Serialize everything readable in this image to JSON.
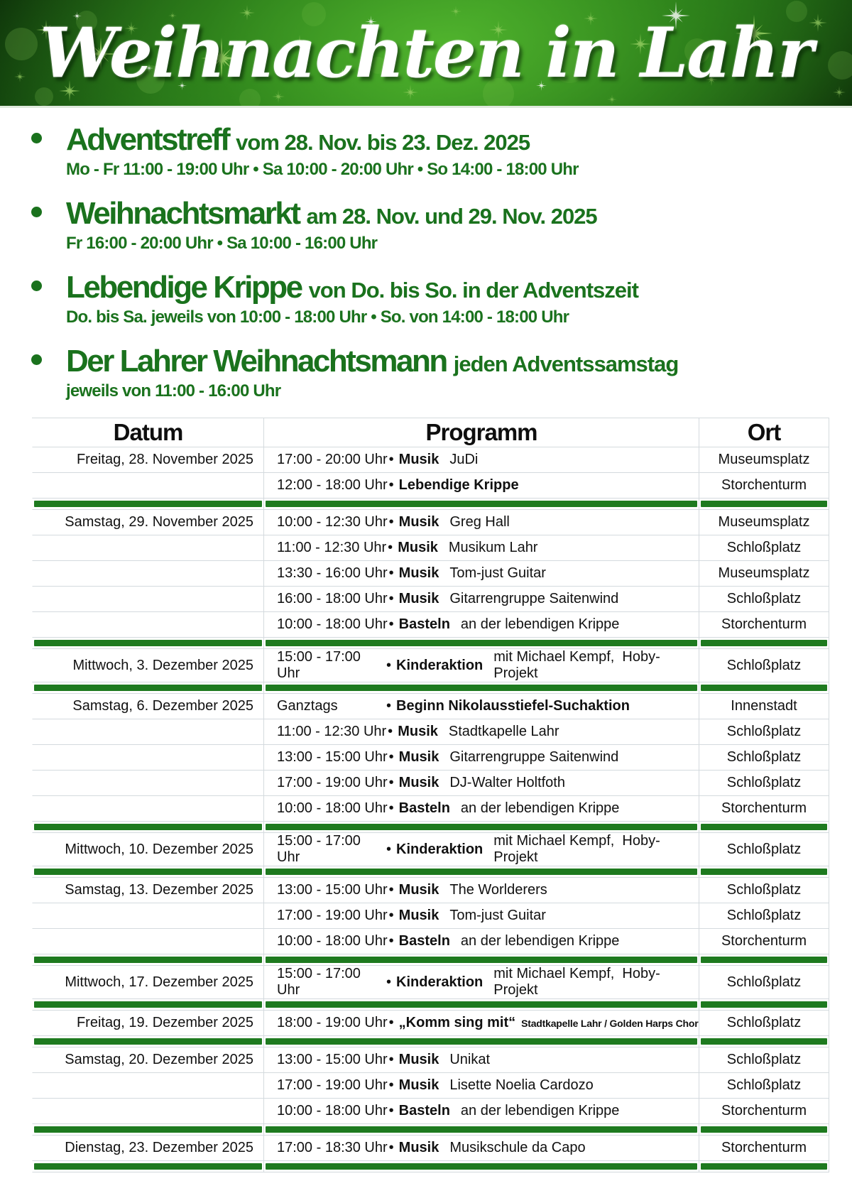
{
  "banner": {
    "title": "Weihnachten in Lahr"
  },
  "colors": {
    "heading_green": "#1a721d",
    "bar_green": "#1e7a1f",
    "line_gray": "#d4dade",
    "banner_center_green": "#3e9e28",
    "banner_edge_green": "#0a2a07",
    "sparkle_green": "#9fd468",
    "sparkle_white": "#ffffff"
  },
  "decorations": {
    "sparkle_icon_glyph": "burst-star"
  },
  "bullets": [
    {
      "title": "Adventstreff",
      "subtitle": "vom 28. Nov. bis 23. Dez. 2025",
      "times": "Mo - Fr 11:00 - 19:00 Uhr • Sa 10:00 - 20:00 Uhr • So 14:00 - 18:00 Uhr"
    },
    {
      "title": "Weihnachtsmarkt",
      "subtitle": "am 28. Nov. und 29. Nov. 2025",
      "times": "Fr 16:00 - 20:00 Uhr • Sa 10:00 - 16:00 Uhr"
    },
    {
      "title": "Lebendige Krippe",
      "subtitle": "von Do. bis So. in der Adventszeit",
      "times": "Do. bis Sa. jeweils von 10:00 - 18:00 Uhr • So. von 14:00 - 18:00 Uhr"
    },
    {
      "title": "Der Lahrer Weihnachtsmann",
      "subtitle": "jeden Adventssamstag",
      "times": "jeweils von 11:00 - 16:00 Uhr"
    }
  ],
  "table": {
    "headers": [
      "Datum",
      "Programm",
      "Ort"
    ],
    "separator": "•",
    "groups": [
      {
        "date": "Freitag, 28. November 2025",
        "rows": [
          {
            "time": "17:00 - 20:00 Uhr",
            "label": "Musik",
            "detail": "JuDi",
            "ort": "Museumsplatz"
          },
          {
            "time": "12:00 - 18:00 Uhr",
            "label": "Lebendige Krippe",
            "detail": "",
            "ort": "Storchenturm"
          }
        ]
      },
      {
        "date": "Samstag, 29. November 2025",
        "rows": [
          {
            "time": "10:00 - 12:30 Uhr",
            "label": "Musik",
            "detail": "Greg Hall",
            "ort": "Museumsplatz"
          },
          {
            "time": "11:00 - 12:30 Uhr",
            "label": "Musik",
            "detail": "Musikum Lahr",
            "ort": "Schloßplatz"
          },
          {
            "time": "13:30 - 16:00 Uhr",
            "label": "Musik",
            "detail": "Tom-just Guitar",
            "ort": "Museumsplatz"
          },
          {
            "time": "16:00 - 18:00 Uhr",
            "label": "Musik",
            "detail": "Gitarrengruppe Saitenwind",
            "ort": "Schloßplatz"
          },
          {
            "time": "10:00 - 18:00 Uhr",
            "label": "Basteln",
            "detail": "an der lebendigen Krippe",
            "ort": "Storchenturm"
          }
        ]
      },
      {
        "date": "Mittwoch, 3. Dezember 2025",
        "rows": [
          {
            "time": "15:00 - 17:00 Uhr",
            "label": "Kinderaktion",
            "detail": "mit Michael Kempf,  Hoby-Projekt",
            "ort": "Schloßplatz"
          }
        ]
      },
      {
        "date": "Samstag, 6. Dezember 2025",
        "rows": [
          {
            "time": "Ganztags",
            "label": "Beginn Nikolausstiefel-Suchaktion",
            "detail": "",
            "ort": "Innenstadt"
          },
          {
            "time": "11:00 - 12:30 Uhr",
            "label": "Musik",
            "detail": "Stadtkapelle Lahr",
            "ort": "Schloßplatz"
          },
          {
            "time": "13:00 - 15:00 Uhr",
            "label": "Musik",
            "detail": "Gitarrengruppe Saitenwind",
            "ort": "Schloßplatz"
          },
          {
            "time": "17:00 - 19:00 Uhr",
            "label": "Musik",
            "detail": "DJ-Walter Holtfoth",
            "ort": "Schloßplatz"
          },
          {
            "time": "10:00 - 18:00 Uhr",
            "label": "Basteln",
            "detail": "an der lebendigen Krippe",
            "ort": "Storchenturm"
          }
        ]
      },
      {
        "date": "Mittwoch, 10. Dezember 2025",
        "rows": [
          {
            "time": "15:00 - 17:00 Uhr",
            "label": "Kinderaktion",
            "detail": "mit Michael Kempf,  Hoby-Projekt",
            "ort": "Schloßplatz"
          }
        ]
      },
      {
        "date": "Samstag, 13. Dezember 2025",
        "rows": [
          {
            "time": "13:00 - 15:00 Uhr",
            "label": "Musik",
            "detail": "The Worlderers",
            "ort": "Schloßplatz"
          },
          {
            "time": "17:00 - 19:00 Uhr",
            "label": "Musik",
            "detail": "Tom-just Guitar",
            "ort": "Schloßplatz"
          },
          {
            "time": "10:00 - 18:00 Uhr",
            "label": "Basteln",
            "detail": "an der lebendigen Krippe",
            "ort": "Storchenturm"
          }
        ]
      },
      {
        "date": "Mittwoch, 17. Dezember 2025",
        "rows": [
          {
            "time": "15:00 - 17:00 Uhr",
            "label": "Kinderaktion",
            "detail": "mit Michael Kempf,  Hoby-Projekt",
            "ort": "Schloßplatz"
          }
        ]
      },
      {
        "date": "Freitag, 19. Dezember 2025",
        "rows": [
          {
            "time": "18:00 - 19:00 Uhr",
            "label": "„Komm sing mit“",
            "detail": "Stadtkapelle Lahr / Golden Harps Chor",
            "detail_small": true,
            "ort": "Schloßplatz"
          }
        ]
      },
      {
        "date": "Samstag, 20. Dezember 2025",
        "rows": [
          {
            "time": "13:00 - 15:00 Uhr",
            "label": "Musik",
            "detail": "Unikat",
            "ort": "Schloßplatz"
          },
          {
            "time": "17:00 - 19:00 Uhr",
            "label": "Musik",
            "detail": "Lisette Noelia Cardozo",
            "ort": "Schloßplatz"
          },
          {
            "time": "10:00 - 18:00 Uhr",
            "label": "Basteln",
            "detail": "an der lebendigen Krippe",
            "ort": "Storchenturm"
          }
        ]
      },
      {
        "date": "Dienstag, 23. Dezember 2025",
        "rows": [
          {
            "time": "17:00 - 18:30 Uhr",
            "label": "Musik",
            "detail": "Musikschule da Capo",
            "ort": "Storchenturm"
          }
        ]
      }
    ]
  }
}
